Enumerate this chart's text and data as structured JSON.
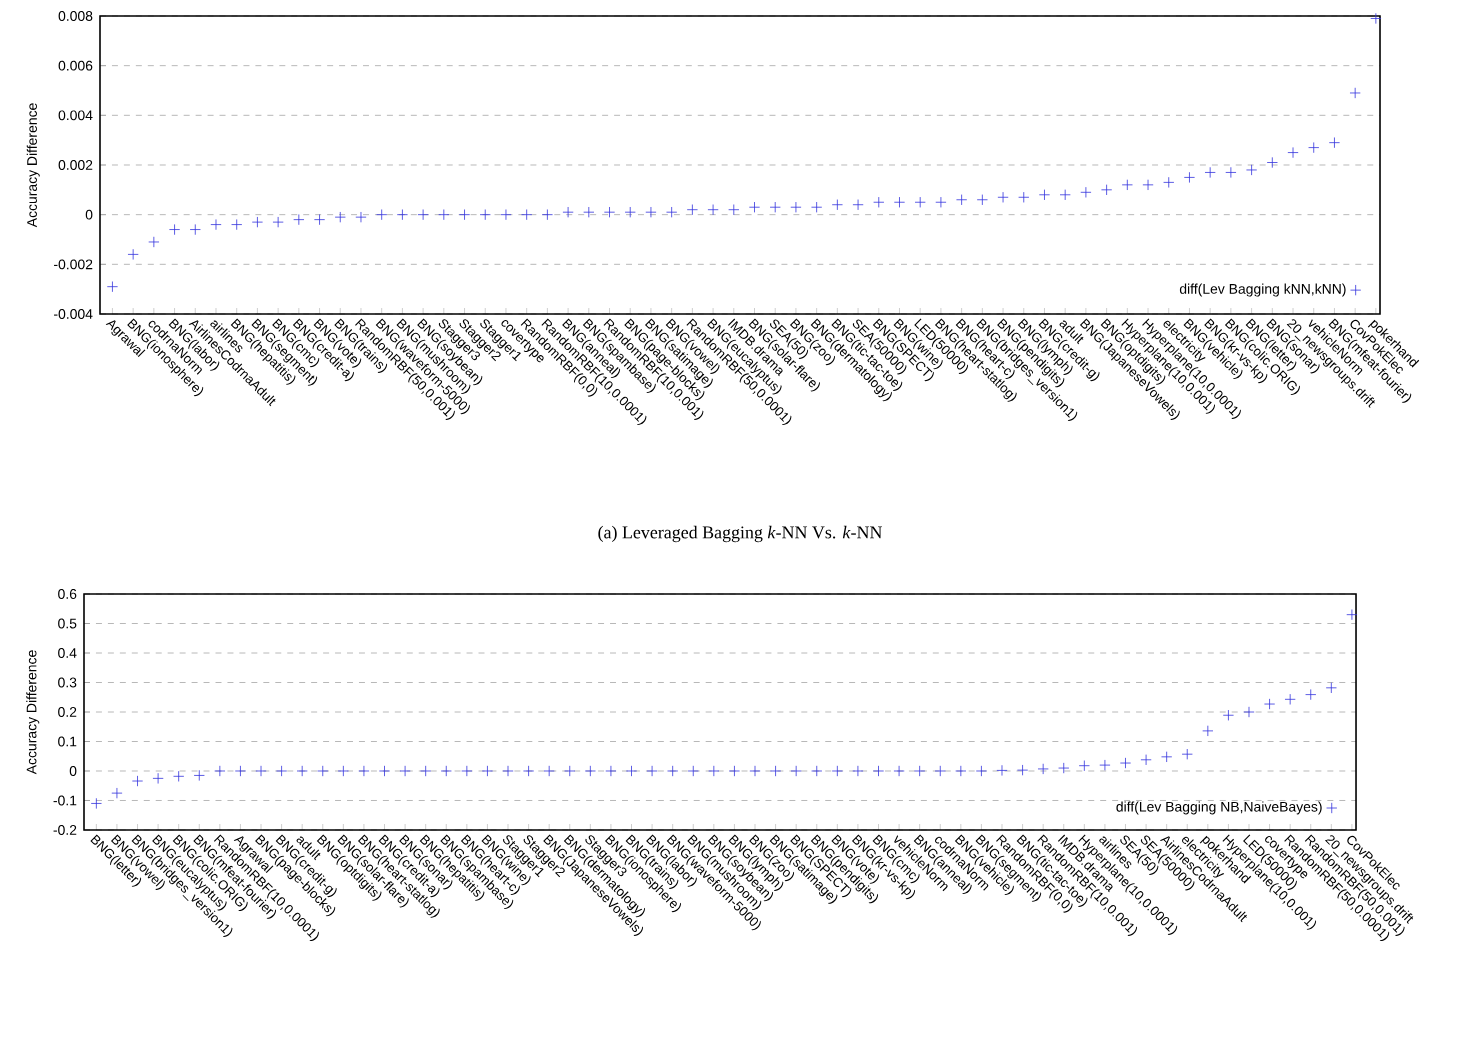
{
  "chart_data": [
    {
      "type": "scatter",
      "ylabel": "Accuracy Difference",
      "categories": [
        "Agrawal",
        "BNG(ionosphere)",
        "codrnaNorm",
        "BNG(labor)",
        "AirlinesCodrnaAdult",
        "airlines",
        "BNG(hepatitis)",
        "BNG(segment)",
        "BNG(cmc)",
        "BNG(credit-a)",
        "BNG(vote)",
        "BNG(trains)",
        "RandomRBF(50,0.001)",
        "BNG(waveform-5000)",
        "BNG(mushroom)",
        "BNG(soybean)",
        "Stagger3",
        "Stagger2",
        "Stagger1",
        "covertype",
        "RandomRBF(0,0)",
        "RandomRBF(10,0.0001)",
        "BNG(anneal)",
        "BNG(spambase)",
        "RandomRBF(10,0.001)",
        "BNG(page-blocks)",
        "BNG(satimage)",
        "BNG(vowel)",
        "RandomRBF(50,0.0001)",
        "BNG(eucalyptus)",
        "IMDB.drama",
        "BNG(solar-flare)",
        "SEA(50)",
        "BNG(zoo)",
        "BNG(dermatology)",
        "BNG(tic-tac-toe)",
        "SEA(50000)",
        "BNG(SPECT)",
        "BNG(wine)",
        "LED(50000)",
        "BNG(heart-statlog)",
        "BNG(heart-c)",
        "BNG(bridges_version1)",
        "BNG(pendigits)",
        "BNG(lymph)",
        "BNG(credit-g)",
        "adult",
        "BNG(JapaneseVowels)",
        "BNG(optdigits)",
        "Hyperplane(10,0.001)",
        "Hyperplane(10,0.0001)",
        "electricity",
        "BNG(vehicle)",
        "BNG(kr-vs-kp)",
        "BNG(colic.ORIG)",
        "BNG(letter)",
        "BNG(sonar)",
        "20_newsgroups.drift",
        "vehicleNorm",
        "BNG(mfeat-fourier)",
        "CovPokElec",
        "pokerhand"
      ],
      "series": [
        {
          "name": "diff(Lev Bagging kNN,kNN)",
          "color": "#3333dd",
          "values": [
            -0.0029,
            -0.0016,
            -0.0011,
            -0.0006,
            -0.0006,
            -0.0004,
            -0.0004,
            -0.0003,
            -0.0003,
            -0.0002,
            -0.0002,
            -0.0001,
            -0.0001,
            0,
            0,
            0,
            0,
            0,
            0,
            0,
            0,
            0,
            0.0001,
            0.0001,
            0.0001,
            0.0001,
            0.0001,
            0.0001,
            0.0002,
            0.0002,
            0.0002,
            0.0003,
            0.0003,
            0.0003,
            0.0003,
            0.0004,
            0.0004,
            0.0005,
            0.0005,
            0.0005,
            0.0005,
            0.0006,
            0.0006,
            0.0007,
            0.0007,
            0.0008,
            0.0008,
            0.0009,
            0.001,
            0.0012,
            0.0012,
            0.0013,
            0.0015,
            0.0017,
            0.0017,
            0.0018,
            0.0021,
            0.0025,
            0.0027,
            0.0029,
            0.0049,
            0.0079
          ]
        }
      ],
      "ylim": [
        -0.004,
        0.008
      ],
      "yticks": [
        -0.004,
        -0.002,
        0,
        0.002,
        0.004,
        0.006,
        0.008
      ],
      "grid": "y",
      "legend": "bottom right",
      "marker": "cross",
      "annotations": [
        "(a) Leveraged Bagging *k*-NN Vs. *k*-NN"
      ]
    },
    {
      "type": "scatter",
      "ylabel": "Accuracy Difference",
      "categories": [
        "BNG(letter)",
        "BNG(vowel)",
        "BNG(bridges_version1)",
        "BNG(eucalyptus)",
        "BNG(colic.ORIG)",
        "BNG(mfeat-fourier)",
        "RandomRBF(10,0.0001)",
        "Agrawal",
        "BNG(page-blocks)",
        "BNG(credit-g)",
        "adult",
        "BNG(optdigits)",
        "BNG(solar-flare)",
        "BNG(heart-statlog)",
        "BNG(credit-a)",
        "BNG(sonar)",
        "BNG(hepatitis)",
        "BNG(spambase)",
        "BNG(heart-c)",
        "BNG(wine)",
        "Stagger1",
        "Stagger2",
        "BNG(JapaneseVowels)",
        "BNG(dermatology)",
        "Stagger3",
        "BNG(ionosphere)",
        "BNG(trains)",
        "BNG(labor)",
        "BNG(waveform-5000)",
        "BNG(mushroom)",
        "BNG(soybean)",
        "BNG(lymph)",
        "BNG(zoo)",
        "BNG(satimage)",
        "BNG(SPECT)",
        "BNG(pendigits)",
        "BNG(vote)",
        "BNG(kr-vs-kp)",
        "BNG(cmc)",
        "vehicleNorm",
        "BNG(anneal)",
        "codrnaNorm",
        "BNG(vehicle)",
        "BNG(segment)",
        "RandomRBF(0,0)",
        "BNG(tic-tac-toe)",
        "RandomRBF(10,0.001)",
        "IMDB.drama",
        "Hyperplane(10,0.0001)",
        "airlines",
        "SEA(50)",
        "SEA(50000)",
        "AirlinesCodrnaAdult",
        "electricity",
        "pokerhand",
        "Hyperplane(10,0.001)",
        "LED(50000)",
        "covertype",
        "RandomRBF(50,0.0001)",
        "RandomRBF(50,0.001)",
        "20_newsgroups.drift",
        "CovPokElec"
      ],
      "series": [
        {
          "name": "diff(Lev Bagging NB,NaiveBayes)",
          "color": "#3333dd",
          "values": [
            -0.11,
            -0.075,
            -0.034,
            -0.025,
            -0.018,
            -0.015,
            0,
            0,
            0,
            0,
            0,
            0,
            0,
            0,
            0,
            0,
            0,
            0,
            0,
            0,
            0,
            0,
            0,
            0,
            0,
            0,
            0,
            0,
            0,
            0,
            0,
            0,
            0,
            0,
            0,
            0,
            0,
            0,
            0,
            0,
            0,
            0,
            0,
            0,
            0.002,
            0.003,
            0.007,
            0.01,
            0.018,
            0.02,
            0.027,
            0.038,
            0.048,
            0.057,
            0.136,
            0.189,
            0.2,
            0.227,
            0.243,
            0.259,
            0.282,
            0.53
          ]
        }
      ],
      "ylim": [
        -0.2,
        0.6
      ],
      "yticks": [
        -0.2,
        -0.1,
        0,
        0.1,
        0.2,
        0.3,
        0.4,
        0.5,
        0.6
      ],
      "grid": "y",
      "legend": "bottom right",
      "marker": "cross"
    }
  ]
}
